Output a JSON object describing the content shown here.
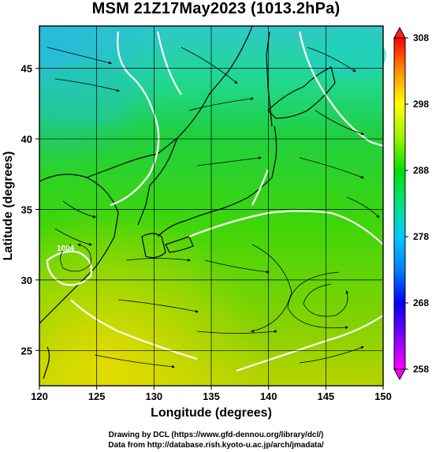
{
  "title": "MSM 21Z17May2023 (1013.2hPa)",
  "map": {
    "lon_range": [
      120,
      150
    ],
    "lat_range": [
      22.5,
      48
    ],
    "x_ticks": [
      "120",
      "125",
      "130",
      "135",
      "140",
      "145",
      "150"
    ],
    "y_ticks": [
      "25",
      "30",
      "35",
      "40",
      "45"
    ],
    "xlabel": "Longitude (degrees)",
    "ylabel": "Latitude  (degrees)",
    "grid": true,
    "isobar_label": "1004"
  },
  "colorbar": {
    "ticks": [
      "258",
      "268",
      "278",
      "288",
      "298",
      "308"
    ],
    "min": 258,
    "max": 308,
    "colors": [
      "#ff00ff",
      "#0000ff",
      "#00c8ff",
      "#00e000",
      "#ffff00",
      "#ff0000"
    ]
  },
  "footer": {
    "line1": "Drawing by DCL (https://www.gfd-dennou.org/library/dcl/)",
    "line2": "Data from http://database.rish.kyoto-u.ac.jp/arch/jmadata/"
  }
}
